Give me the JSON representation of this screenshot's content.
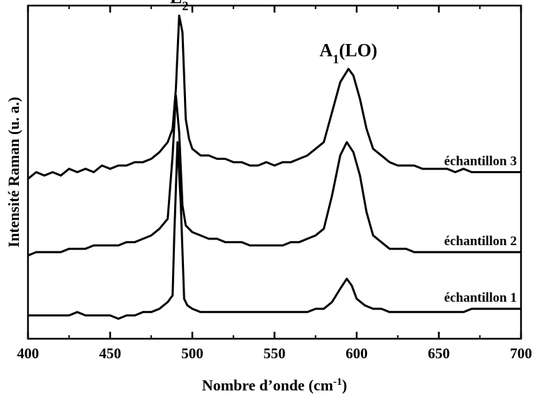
{
  "chart_data": {
    "type": "line",
    "xlabel": "Nombre d’onde (cm",
    "xlabel_sup": "-1",
    "xlabel_close": ")",
    "ylabel": "Intensité Raman  (u. a.)",
    "xlim": [
      400,
      700
    ],
    "ylim": [
      0,
      100
    ],
    "y_ticks_labeled": false,
    "grid": false,
    "x_ticks": [
      {
        "value": 400,
        "label": "400"
      },
      {
        "value": 450,
        "label": "450"
      },
      {
        "value": 500,
        "label": "500"
      },
      {
        "value": 550,
        "label": "550"
      },
      {
        "value": 600,
        "label": "600"
      },
      {
        "value": 650,
        "label": "650"
      },
      {
        "value": 700,
        "label": "700"
      }
    ],
    "annotations": [
      {
        "base": "E",
        "sub": "2",
        "tail": "",
        "x": 492,
        "y": 97
      },
      {
        "base": "A",
        "sub": "1",
        "tail": "(LO)",
        "x": 595,
        "y": 81
      }
    ],
    "series": [
      {
        "name": "échantillon 3",
        "points": [
          [
            400,
            48
          ],
          [
            405,
            50
          ],
          [
            410,
            49
          ],
          [
            415,
            50
          ],
          [
            420,
            49
          ],
          [
            425,
            51
          ],
          [
            430,
            50
          ],
          [
            435,
            51
          ],
          [
            440,
            50
          ],
          [
            445,
            52
          ],
          [
            450,
            51
          ],
          [
            455,
            52
          ],
          [
            460,
            52
          ],
          [
            465,
            53
          ],
          [
            470,
            53
          ],
          [
            475,
            54
          ],
          [
            480,
            56
          ],
          [
            485,
            59
          ],
          [
            488,
            63
          ],
          [
            490,
            75
          ],
          [
            492,
            97
          ],
          [
            494,
            92
          ],
          [
            496,
            66
          ],
          [
            498,
            60
          ],
          [
            500,
            57
          ],
          [
            505,
            55
          ],
          [
            510,
            55
          ],
          [
            515,
            54
          ],
          [
            520,
            54
          ],
          [
            525,
            53
          ],
          [
            530,
            53
          ],
          [
            535,
            52
          ],
          [
            540,
            52
          ],
          [
            545,
            53
          ],
          [
            550,
            52
          ],
          [
            555,
            53
          ],
          [
            560,
            53
          ],
          [
            565,
            54
          ],
          [
            570,
            55
          ],
          [
            575,
            57
          ],
          [
            580,
            59
          ],
          [
            585,
            68
          ],
          [
            590,
            77
          ],
          [
            595,
            81
          ],
          [
            598,
            79
          ],
          [
            602,
            72
          ],
          [
            606,
            63
          ],
          [
            610,
            57
          ],
          [
            615,
            55
          ],
          [
            620,
            53
          ],
          [
            625,
            52
          ],
          [
            630,
            52
          ],
          [
            635,
            52
          ],
          [
            640,
            51
          ],
          [
            645,
            51
          ],
          [
            650,
            51
          ],
          [
            655,
            51
          ],
          [
            660,
            50
          ],
          [
            665,
            51
          ],
          [
            670,
            50
          ],
          [
            675,
            50
          ],
          [
            680,
            50
          ],
          [
            685,
            50
          ],
          [
            690,
            50
          ],
          [
            695,
            50
          ],
          [
            700,
            50
          ]
        ]
      },
      {
        "name": "échantillon 2",
        "points": [
          [
            400,
            25
          ],
          [
            405,
            26
          ],
          [
            410,
            26
          ],
          [
            415,
            26
          ],
          [
            420,
            26
          ],
          [
            425,
            27
          ],
          [
            430,
            27
          ],
          [
            435,
            27
          ],
          [
            440,
            28
          ],
          [
            445,
            28
          ],
          [
            450,
            28
          ],
          [
            455,
            28
          ],
          [
            460,
            29
          ],
          [
            465,
            29
          ],
          [
            470,
            30
          ],
          [
            475,
            31
          ],
          [
            480,
            33
          ],
          [
            485,
            36
          ],
          [
            488,
            55
          ],
          [
            490,
            73
          ],
          [
            492,
            62
          ],
          [
            494,
            40
          ],
          [
            496,
            34
          ],
          [
            500,
            32
          ],
          [
            505,
            31
          ],
          [
            510,
            30
          ],
          [
            515,
            30
          ],
          [
            520,
            29
          ],
          [
            525,
            29
          ],
          [
            530,
            29
          ],
          [
            535,
            28
          ],
          [
            540,
            28
          ],
          [
            545,
            28
          ],
          [
            550,
            28
          ],
          [
            555,
            28
          ],
          [
            560,
            29
          ],
          [
            565,
            29
          ],
          [
            570,
            30
          ],
          [
            575,
            31
          ],
          [
            580,
            33
          ],
          [
            585,
            43
          ],
          [
            590,
            55
          ],
          [
            594,
            59
          ],
          [
            598,
            56
          ],
          [
            602,
            49
          ],
          [
            606,
            38
          ],
          [
            610,
            31
          ],
          [
            615,
            29
          ],
          [
            620,
            27
          ],
          [
            625,
            27
          ],
          [
            630,
            27
          ],
          [
            635,
            26
          ],
          [
            640,
            26
          ],
          [
            645,
            26
          ],
          [
            650,
            26
          ],
          [
            655,
            26
          ],
          [
            660,
            26
          ],
          [
            665,
            26
          ],
          [
            670,
            26
          ],
          [
            675,
            26
          ],
          [
            680,
            26
          ],
          [
            685,
            26
          ],
          [
            690,
            26
          ],
          [
            695,
            26
          ],
          [
            700,
            26
          ]
        ]
      },
      {
        "name": "échantillon 1",
        "points": [
          [
            400,
            7
          ],
          [
            405,
            7
          ],
          [
            410,
            7
          ],
          [
            415,
            7
          ],
          [
            420,
            7
          ],
          [
            425,
            7
          ],
          [
            430,
            8
          ],
          [
            435,
            7
          ],
          [
            440,
            7
          ],
          [
            445,
            7
          ],
          [
            450,
            7
          ],
          [
            455,
            6
          ],
          [
            460,
            7
          ],
          [
            465,
            7
          ],
          [
            470,
            8
          ],
          [
            475,
            8
          ],
          [
            480,
            9
          ],
          [
            485,
            11
          ],
          [
            488,
            13
          ],
          [
            489,
            31
          ],
          [
            491,
            59
          ],
          [
            493,
            40
          ],
          [
            495,
            12
          ],
          [
            497,
            10
          ],
          [
            500,
            9
          ],
          [
            505,
            8
          ],
          [
            510,
            8
          ],
          [
            515,
            8
          ],
          [
            520,
            8
          ],
          [
            525,
            8
          ],
          [
            530,
            8
          ],
          [
            535,
            8
          ],
          [
            540,
            8
          ],
          [
            545,
            8
          ],
          [
            550,
            8
          ],
          [
            555,
            8
          ],
          [
            560,
            8
          ],
          [
            565,
            8
          ],
          [
            570,
            8
          ],
          [
            575,
            9
          ],
          [
            580,
            9
          ],
          [
            585,
            11
          ],
          [
            590,
            15
          ],
          [
            594,
            18
          ],
          [
            597,
            16
          ],
          [
            600,
            12
          ],
          [
            605,
            10
          ],
          [
            610,
            9
          ],
          [
            615,
            9
          ],
          [
            620,
            8
          ],
          [
            625,
            8
          ],
          [
            630,
            8
          ],
          [
            635,
            8
          ],
          [
            640,
            8
          ],
          [
            645,
            8
          ],
          [
            650,
            8
          ],
          [
            655,
            8
          ],
          [
            660,
            8
          ],
          [
            665,
            8
          ],
          [
            670,
            9
          ],
          [
            675,
            9
          ],
          [
            680,
            9
          ],
          [
            685,
            9
          ],
          [
            690,
            9
          ],
          [
            695,
            9
          ],
          [
            700,
            9
          ]
        ]
      }
    ]
  }
}
